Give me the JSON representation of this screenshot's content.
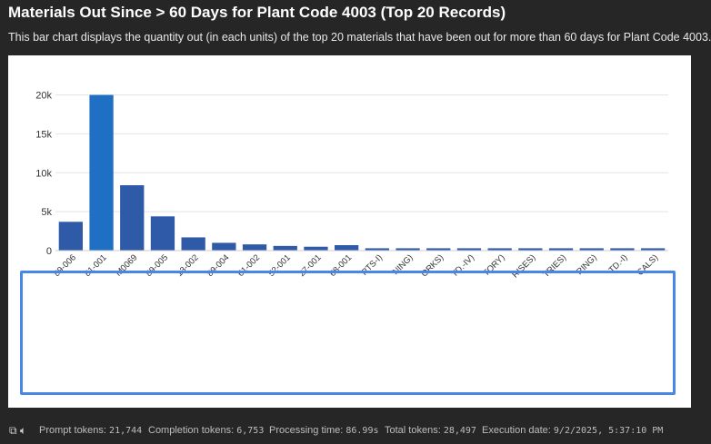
{
  "header": {
    "title": "Materials Out Since > 60 Days for Plant Code 4003 (Top 20 Records)",
    "subtitle": "This bar chart displays the quantity out (in each units) of the top 20 materials that have been out for more than 60 days for Plant Code 4003."
  },
  "chart_data": {
    "type": "bar",
    "categories": [
      "89-006",
      "81-001",
      "M0069",
      "89-005",
      "13-002",
      "89-004",
      "61-002",
      "52-001",
      "27-001",
      "68-001",
      "RTS-I)",
      "NING)",
      "ORKS)",
      "TD.-IV)",
      "TORY)",
      "RISES)",
      "TRIES)",
      "RING)",
      "TD.-I)",
      "CALS)"
    ],
    "values": [
      3700,
      20000,
      8400,
      4400,
      1700,
      1000,
      800,
      600,
      500,
      700,
      300,
      300,
      300,
      300,
      300,
      300,
      300,
      300,
      300,
      300
    ],
    "ylim": [
      0,
      21000
    ],
    "yticks": [
      0,
      5000,
      10000,
      15000,
      20000
    ],
    "ytick_labels": [
      "0",
      "5k",
      "10k",
      "15k",
      "20k"
    ],
    "grid": true,
    "bar_color": "#2f5aa8",
    "highlight_color": "#1f6fc4"
  },
  "footer": {
    "prompt_tokens_label": "Prompt tokens:",
    "prompt_tokens": "21,744",
    "completion_tokens_label": "Completion tokens:",
    "completion_tokens": "6,753",
    "processing_time_label": "Processing time:",
    "processing_time": "86.99s",
    "total_tokens_label": "Total tokens:",
    "total_tokens": "28,497",
    "execution_date_label": "Execution date:",
    "execution_date": "9/2/2025, 5:37:10 PM"
  },
  "colors": {
    "accent": "#4a86e8",
    "background": "#262626",
    "panel": "#ffffff"
  }
}
